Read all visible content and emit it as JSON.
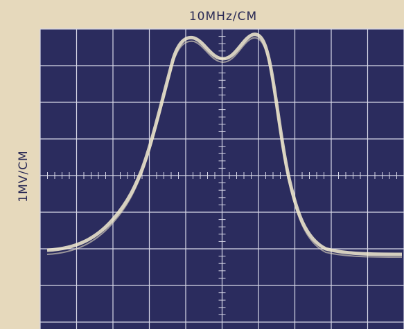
{
  "screen": {
    "x_label": "10MHz/CM",
    "y_label": "1MV/CM"
  }
}
